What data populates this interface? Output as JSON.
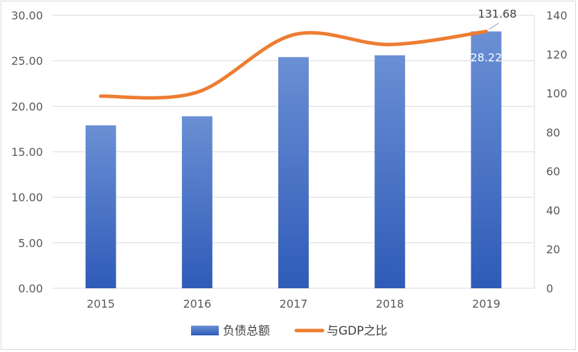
{
  "chart_data": {
    "type": "bar",
    "categories": [
      "2015",
      "2016",
      "2017",
      "2018",
      "2019"
    ],
    "series": [
      {
        "name": "负债总额",
        "type": "bar",
        "axis": "left",
        "values": [
          17.9,
          18.9,
          25.4,
          25.6,
          28.22
        ],
        "color": "#4472c4"
      },
      {
        "name": "与GDP之比",
        "type": "line",
        "axis": "right",
        "values": [
          98.5,
          100.5,
          130.0,
          125.0,
          131.68
        ],
        "color": "#ed7d31"
      }
    ],
    "y_left": {
      "min": 0,
      "max": 30,
      "step": 5,
      "tick_labels": [
        "0.00",
        "5.00",
        "10.00",
        "15.00",
        "20.00",
        "25.00",
        "30.00"
      ]
    },
    "y_right": {
      "min": 0,
      "max": 140,
      "step": 20,
      "tick_labels": [
        "0",
        "20",
        "40",
        "60",
        "80",
        "100",
        "120",
        "140"
      ]
    },
    "data_labels": [
      {
        "series": "负债总额",
        "category": "2019",
        "text": "28.22",
        "color": "#ffffff"
      },
      {
        "series": "与GDP之比",
        "category": "2019",
        "text": "131.68",
        "color": "#404040"
      }
    ],
    "grid": true,
    "legend_position": "bottom"
  }
}
